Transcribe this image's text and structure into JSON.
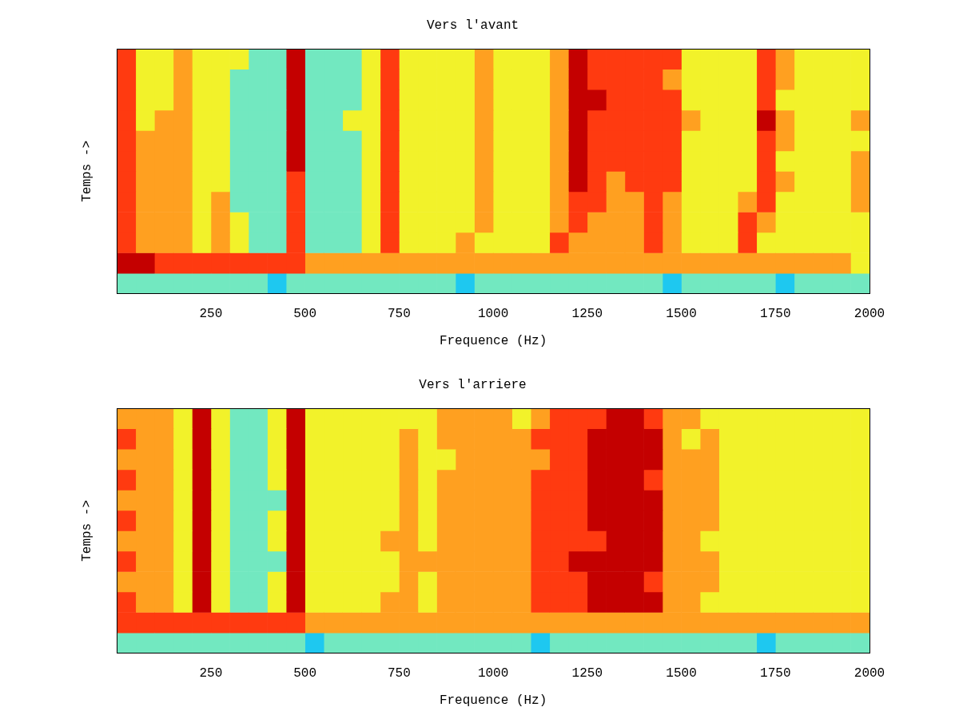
{
  "chart_data": [
    {
      "type": "heatmap",
      "title": "Vers l'avant",
      "x_label": "Frequence (Hz)",
      "y_label": "Temps ->",
      "xlim": [
        0,
        2000
      ],
      "xticks": [
        250,
        500,
        750,
        1000,
        1250,
        1500,
        1750,
        2000
      ],
      "tick_labels": "x",
      "bins": [
        0,
        50,
        100,
        150,
        200,
        250,
        300,
        350,
        400,
        450,
        500,
        550,
        600,
        650,
        700,
        750,
        800,
        850,
        900,
        950,
        1000,
        1050,
        1100,
        1150,
        1200,
        1250,
        1300,
        1350,
        1400,
        1450,
        1500,
        1550,
        1600,
        1650,
        1700,
        1750,
        1800,
        1850,
        1900,
        1950,
        2000
      ],
      "cells": [
        [
          1,
          1,
          1,
          1,
          1,
          1,
          1,
          1,
          0,
          1,
          1,
          1,
          1,
          1,
          1,
          1,
          1,
          1,
          0,
          1,
          1,
          1,
          1,
          1,
          1,
          1,
          1,
          1,
          1,
          0,
          1,
          1,
          1,
          1,
          1,
          0,
          1,
          1,
          1,
          1
        ],
        [
          5,
          5,
          4,
          4,
          4,
          4,
          4,
          4,
          4,
          4,
          3,
          3,
          3,
          3,
          3,
          3,
          3,
          3,
          3,
          3,
          3,
          3,
          3,
          3,
          3,
          3,
          3,
          3,
          3,
          3,
          3,
          3,
          3,
          3,
          3,
          3,
          3,
          3,
          3,
          2
        ],
        [
          4,
          3,
          3,
          3,
          2,
          3,
          2,
          1,
          1,
          4,
          1,
          1,
          1,
          2,
          4,
          2,
          2,
          2,
          3,
          2,
          2,
          2,
          2,
          4,
          3,
          3,
          3,
          3,
          4,
          3,
          2,
          2,
          2,
          4,
          2,
          2,
          2,
          2,
          2,
          2
        ],
        [
          4,
          3,
          3,
          3,
          2,
          3,
          2,
          1,
          1,
          4,
          1,
          1,
          1,
          2,
          4,
          2,
          2,
          2,
          2,
          3,
          2,
          2,
          2,
          3,
          4,
          3,
          3,
          3,
          4,
          3,
          2,
          2,
          2,
          4,
          3,
          2,
          2,
          2,
          2,
          2
        ],
        [
          4,
          3,
          3,
          3,
          2,
          3,
          1,
          1,
          1,
          4,
          1,
          1,
          1,
          2,
          4,
          2,
          2,
          2,
          2,
          3,
          2,
          2,
          2,
          3,
          4,
          4,
          3,
          3,
          4,
          3,
          2,
          2,
          2,
          3,
          4,
          2,
          2,
          2,
          2,
          3
        ],
        [
          4,
          3,
          3,
          3,
          2,
          2,
          1,
          1,
          1,
          4,
          1,
          1,
          1,
          2,
          4,
          2,
          2,
          2,
          2,
          3,
          2,
          2,
          2,
          3,
          5,
          4,
          3,
          4,
          4,
          4,
          2,
          2,
          2,
          2,
          4,
          3,
          2,
          2,
          2,
          3
        ],
        [
          4,
          3,
          3,
          3,
          2,
          2,
          1,
          1,
          1,
          5,
          1,
          1,
          1,
          2,
          4,
          2,
          2,
          2,
          2,
          3,
          2,
          2,
          2,
          3,
          5,
          4,
          4,
          4,
          4,
          4,
          2,
          2,
          2,
          2,
          4,
          2,
          2,
          2,
          2,
          3
        ],
        [
          4,
          3,
          3,
          3,
          2,
          2,
          1,
          1,
          1,
          5,
          1,
          1,
          1,
          2,
          4,
          2,
          2,
          2,
          2,
          3,
          2,
          2,
          2,
          3,
          5,
          4,
          4,
          4,
          4,
          4,
          2,
          2,
          2,
          2,
          4,
          3,
          2,
          2,
          2,
          2
        ],
        [
          4,
          2,
          3,
          3,
          2,
          2,
          1,
          1,
          1,
          5,
          1,
          1,
          2,
          2,
          4,
          2,
          2,
          2,
          2,
          3,
          2,
          2,
          2,
          3,
          5,
          4,
          4,
          4,
          4,
          4,
          3,
          2,
          2,
          2,
          5,
          3,
          2,
          2,
          2,
          3
        ],
        [
          4,
          2,
          2,
          3,
          2,
          2,
          1,
          1,
          1,
          5,
          1,
          1,
          1,
          2,
          4,
          2,
          2,
          2,
          2,
          3,
          2,
          2,
          2,
          3,
          5,
          5,
          4,
          4,
          4,
          4,
          2,
          2,
          2,
          2,
          4,
          2,
          2,
          2,
          2,
          2
        ],
        [
          4,
          2,
          2,
          3,
          2,
          2,
          1,
          1,
          1,
          5,
          1,
          1,
          1,
          2,
          4,
          2,
          2,
          2,
          2,
          3,
          2,
          2,
          2,
          3,
          5,
          4,
          4,
          4,
          4,
          3,
          2,
          2,
          2,
          2,
          4,
          3,
          2,
          2,
          2,
          2
        ],
        [
          4,
          2,
          2,
          3,
          2,
          2,
          2,
          1,
          1,
          5,
          1,
          1,
          1,
          2,
          4,
          2,
          2,
          2,
          2,
          3,
          2,
          2,
          2,
          3,
          5,
          4,
          4,
          4,
          4,
          4,
          2,
          2,
          2,
          2,
          4,
          3,
          2,
          2,
          2,
          2
        ]
      ]
    },
    {
      "type": "heatmap",
      "title": "Vers l'arriere",
      "x_label": "Frequence (Hz)",
      "y_label": "Temps ->",
      "xlim": [
        0,
        2000
      ],
      "xticks": [
        250,
        500,
        750,
        1000,
        1250,
        1500,
        1750,
        2000
      ],
      "tick_labels": "x",
      "bins": [
        0,
        50,
        100,
        150,
        200,
        250,
        300,
        350,
        400,
        450,
        500,
        550,
        600,
        650,
        700,
        750,
        800,
        850,
        900,
        950,
        1000,
        1050,
        1100,
        1150,
        1200,
        1250,
        1300,
        1350,
        1400,
        1450,
        1500,
        1550,
        1600,
        1650,
        1700,
        1750,
        1800,
        1850,
        1900,
        1950,
        2000
      ],
      "cells": [
        [
          1,
          1,
          1,
          1,
          1,
          1,
          1,
          1,
          1,
          1,
          0,
          1,
          1,
          1,
          1,
          1,
          1,
          1,
          1,
          1,
          1,
          1,
          0,
          1,
          1,
          1,
          1,
          1,
          1,
          1,
          1,
          1,
          1,
          1,
          0,
          1,
          1,
          1,
          1,
          1
        ],
        [
          4,
          4,
          4,
          4,
          4,
          4,
          4,
          4,
          4,
          4,
          3,
          3,
          3,
          3,
          3,
          3,
          3,
          3,
          3,
          3,
          3,
          3,
          3,
          3,
          3,
          3,
          3,
          3,
          3,
          3,
          3,
          3,
          3,
          3,
          3,
          3,
          3,
          3,
          3,
          3
        ],
        [
          4,
          3,
          3,
          2,
          5,
          2,
          1,
          1,
          2,
          5,
          2,
          2,
          2,
          2,
          3,
          3,
          2,
          3,
          3,
          3,
          3,
          3,
          4,
          4,
          4,
          5,
          5,
          5,
          5,
          3,
          3,
          2,
          2,
          2,
          2,
          2,
          2,
          2,
          2,
          2
        ],
        [
          3,
          3,
          3,
          2,
          5,
          2,
          1,
          1,
          2,
          5,
          2,
          2,
          2,
          2,
          2,
          3,
          2,
          3,
          3,
          3,
          3,
          3,
          4,
          4,
          4,
          5,
          5,
          5,
          4,
          3,
          3,
          3,
          2,
          2,
          2,
          2,
          2,
          2,
          2,
          2
        ],
        [
          4,
          3,
          3,
          2,
          5,
          2,
          1,
          1,
          1,
          5,
          2,
          2,
          2,
          2,
          2,
          3,
          3,
          3,
          3,
          3,
          3,
          3,
          4,
          4,
          5,
          5,
          5,
          5,
          5,
          3,
          3,
          3,
          2,
          2,
          2,
          2,
          2,
          2,
          2,
          2
        ],
        [
          3,
          3,
          3,
          2,
          5,
          2,
          1,
          1,
          2,
          5,
          2,
          2,
          2,
          2,
          3,
          3,
          2,
          3,
          3,
          3,
          3,
          3,
          4,
          4,
          4,
          4,
          5,
          5,
          5,
          3,
          3,
          2,
          2,
          2,
          2,
          2,
          2,
          2,
          2,
          2
        ],
        [
          4,
          3,
          3,
          2,
          5,
          2,
          1,
          1,
          2,
          5,
          2,
          2,
          2,
          2,
          2,
          3,
          2,
          3,
          3,
          3,
          3,
          3,
          4,
          4,
          4,
          5,
          5,
          5,
          5,
          3,
          3,
          3,
          2,
          2,
          2,
          2,
          2,
          2,
          2,
          2
        ],
        [
          3,
          3,
          3,
          2,
          5,
          2,
          1,
          1,
          1,
          5,
          2,
          2,
          2,
          2,
          2,
          3,
          2,
          3,
          3,
          3,
          3,
          3,
          4,
          4,
          4,
          5,
          5,
          5,
          5,
          3,
          3,
          3,
          2,
          2,
          2,
          2,
          2,
          2,
          2,
          2
        ],
        [
          4,
          3,
          3,
          2,
          5,
          2,
          1,
          1,
          2,
          5,
          2,
          2,
          2,
          2,
          2,
          3,
          2,
          3,
          3,
          3,
          3,
          3,
          4,
          4,
          4,
          5,
          5,
          5,
          4,
          3,
          3,
          3,
          2,
          2,
          2,
          2,
          2,
          2,
          2,
          2
        ],
        [
          3,
          3,
          3,
          2,
          5,
          2,
          1,
          1,
          2,
          5,
          2,
          2,
          2,
          2,
          2,
          3,
          2,
          2,
          3,
          3,
          3,
          3,
          3,
          4,
          4,
          5,
          5,
          5,
          5,
          3,
          3,
          3,
          2,
          2,
          2,
          2,
          2,
          2,
          2,
          2
        ],
        [
          4,
          3,
          3,
          2,
          5,
          2,
          1,
          1,
          2,
          5,
          2,
          2,
          2,
          2,
          2,
          3,
          2,
          3,
          3,
          3,
          3,
          3,
          4,
          4,
          4,
          5,
          5,
          5,
          5,
          3,
          2,
          3,
          2,
          2,
          2,
          2,
          2,
          2,
          2,
          2
        ],
        [
          3,
          3,
          3,
          2,
          5,
          2,
          1,
          1,
          2,
          5,
          2,
          2,
          2,
          2,
          2,
          2,
          2,
          3,
          3,
          3,
          3,
          2,
          3,
          4,
          4,
          4,
          5,
          5,
          4,
          3,
          3,
          2,
          2,
          2,
          2,
          2,
          2,
          2,
          2,
          2
        ]
      ]
    }
  ]
}
